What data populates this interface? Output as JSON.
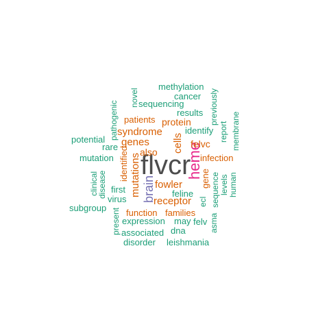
{
  "colors": {
    "background": "#ffffff",
    "teal": "#1b9e77",
    "orange": "#d95f02",
    "purple": "#7570b3",
    "magenta": "#e7298a",
    "dark_grey": "#4d4d4d"
  },
  "words": [
    {
      "text": "flvcr",
      "color": "#4d4d4d",
      "weight": 10
    },
    {
      "text": "heme",
      "color": "#e7298a",
      "weight": 6
    },
    {
      "text": "brain",
      "color": "#7570b3",
      "weight": 4
    },
    {
      "text": "syndrome",
      "color": "#d95f02",
      "weight": 3
    },
    {
      "text": "genes",
      "color": "#d95f02",
      "weight": 3
    },
    {
      "text": "cells",
      "color": "#d95f02",
      "weight": 3
    },
    {
      "text": "fowler",
      "color": "#d95f02",
      "weight": 3
    },
    {
      "text": "receptor",
      "color": "#d95f02",
      "weight": 3
    },
    {
      "text": "mutations",
      "color": "#d95f02",
      "weight": 3
    },
    {
      "text": "protein",
      "color": "#d95f02",
      "weight": 2
    },
    {
      "text": "patients",
      "color": "#d95f02",
      "weight": 2
    },
    {
      "text": "also",
      "color": "#d95f02",
      "weight": 2
    },
    {
      "text": "identified",
      "color": "#d95f02",
      "weight": 2
    },
    {
      "text": "felvc",
      "color": "#d95f02",
      "weight": 2
    },
    {
      "text": "infection",
      "color": "#d95f02",
      "weight": 2
    },
    {
      "text": "gene",
      "color": "#d95f02",
      "weight": 2
    },
    {
      "text": "function",
      "color": "#d95f02",
      "weight": 2
    },
    {
      "text": "families",
      "color": "#d95f02",
      "weight": 2
    },
    {
      "text": "methylation",
      "color": "#1b9e77",
      "weight": 1
    },
    {
      "text": "cancer",
      "color": "#1b9e77",
      "weight": 1
    },
    {
      "text": "sequencing",
      "color": "#1b9e77",
      "weight": 1
    },
    {
      "text": "novel",
      "color": "#1b9e77",
      "weight": 1
    },
    {
      "text": "pathogenic",
      "color": "#1b9e77",
      "weight": 1
    },
    {
      "text": "previously",
      "color": "#1b9e77",
      "weight": 1
    },
    {
      "text": "results",
      "color": "#1b9e77",
      "weight": 1
    },
    {
      "text": "membrane",
      "color": "#1b9e77",
      "weight": 1
    },
    {
      "text": "identify",
      "color": "#1b9e77",
      "weight": 1
    },
    {
      "text": "report",
      "color": "#1b9e77",
      "weight": 1
    },
    {
      "text": "potential",
      "color": "#1b9e77",
      "weight": 1
    },
    {
      "text": "rare",
      "color": "#1b9e77",
      "weight": 1
    },
    {
      "text": "mutation",
      "color": "#1b9e77",
      "weight": 1
    },
    {
      "text": "clinical",
      "color": "#1b9e77",
      "weight": 1
    },
    {
      "text": "disease",
      "color": "#1b9e77",
      "weight": 1
    },
    {
      "text": "first",
      "color": "#1b9e77",
      "weight": 1
    },
    {
      "text": "virus",
      "color": "#1b9e77",
      "weight": 1
    },
    {
      "text": "subgroup",
      "color": "#1b9e77",
      "weight": 1
    },
    {
      "text": "present",
      "color": "#1b9e77",
      "weight": 1
    },
    {
      "text": "feline",
      "color": "#1b9e77",
      "weight": 1
    },
    {
      "text": "ecl",
      "color": "#1b9e77",
      "weight": 1
    },
    {
      "text": "sequence",
      "color": "#1b9e77",
      "weight": 1
    },
    {
      "text": "levels",
      "color": "#1b9e77",
      "weight": 1
    },
    {
      "text": "human",
      "color": "#1b9e77",
      "weight": 1
    },
    {
      "text": "expression",
      "color": "#1b9e77",
      "weight": 1
    },
    {
      "text": "may",
      "color": "#1b9e77",
      "weight": 1
    },
    {
      "text": "felv",
      "color": "#1b9e77",
      "weight": 1
    },
    {
      "text": "asma",
      "color": "#1b9e77",
      "weight": 1
    },
    {
      "text": "associated",
      "color": "#1b9e77",
      "weight": 1
    },
    {
      "text": "dna",
      "color": "#1b9e77",
      "weight": 1
    },
    {
      "text": "disorder",
      "color": "#1b9e77",
      "weight": 1
    },
    {
      "text": "leishmania",
      "color": "#1b9e77",
      "weight": 1
    }
  ]
}
